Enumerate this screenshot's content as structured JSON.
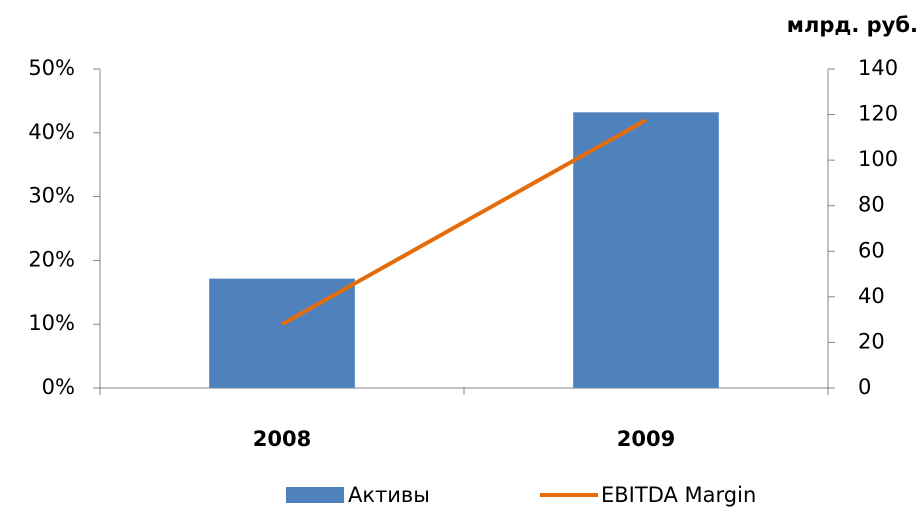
{
  "chart_data": {
    "type": "bar_line",
    "y2_label": "млрд. руб.",
    "categories": [
      "2008",
      "2009"
    ],
    "series": [
      {
        "name": "Активы",
        "type": "bar",
        "axis": "y2",
        "color": "#4f81bd",
        "values": [
          48,
          121
        ]
      },
      {
        "name": "EBITDA Margin",
        "type": "line",
        "axis": "y",
        "color": "#e46c0a",
        "values": [
          10,
          42
        ]
      }
    ],
    "ylim": [
      0,
      50
    ],
    "yticks": [
      {
        "value": 0,
        "label": "0%"
      },
      {
        "value": 10,
        "label": "10%"
      },
      {
        "value": 20,
        "label": "20%"
      },
      {
        "value": 30,
        "label": "30%"
      },
      {
        "value": 40,
        "label": "40%"
      },
      {
        "value": 50,
        "label": "50%"
      }
    ],
    "y2lim": [
      0,
      140
    ],
    "y2ticks": [
      0,
      20,
      40,
      60,
      80,
      100,
      120,
      140
    ],
    "legend": "bottom"
  }
}
